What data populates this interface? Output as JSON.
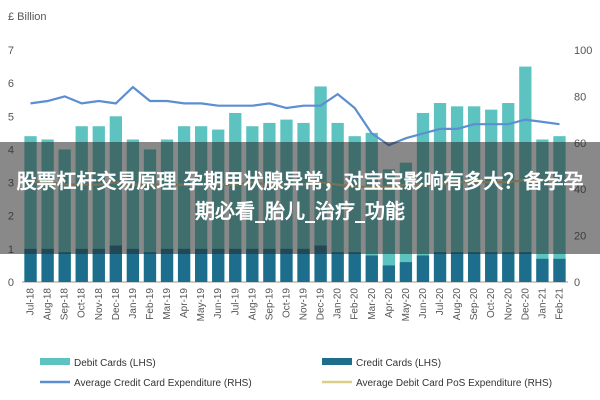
{
  "chart_data": {
    "type": "bar",
    "left_axis_label": "£ Billion",
    "y_left": {
      "range": [
        0,
        7
      ],
      "ticks": [
        "0",
        "1",
        "2",
        "3",
        "4",
        "5",
        "6",
        "7"
      ]
    },
    "y_right": {
      "range": [
        0,
        100
      ],
      "ticks": [
        "0",
        "20",
        "40",
        "60",
        "80",
        "100"
      ]
    },
    "categories": [
      "Jul-18",
      "Aug-18",
      "Sep-18",
      "Oct-18",
      "Nov-18",
      "Dec-18",
      "Jan-19",
      "Feb-19",
      "Mar-19",
      "Apr-19",
      "May-19",
      "Jun-19",
      "Jul-19",
      "Aug-19",
      "Sep-19",
      "Oct-19",
      "Nov-19",
      "Dec-19",
      "Jan-20",
      "Feb-20",
      "Mar-20",
      "Apr-20",
      "May-20",
      "Jun-20",
      "Jul-20",
      "Aug-20",
      "Sep-20",
      "Oct-20",
      "Nov-20",
      "Dec-20",
      "Jan-21",
      "Feb-21"
    ],
    "series": [
      {
        "name": "Debit Cards (LHS)",
        "type": "bar",
        "axis": "left",
        "color": "#5cc3c0",
        "values": [
          4.4,
          4.3,
          4.0,
          4.7,
          4.7,
          5.0,
          4.3,
          4.0,
          4.3,
          4.7,
          4.7,
          4.6,
          5.1,
          4.7,
          4.8,
          4.9,
          4.8,
          5.9,
          4.8,
          4.4,
          4.5,
          3.4,
          3.6,
          5.1,
          5.4,
          5.3,
          5.3,
          5.2,
          5.4,
          6.5,
          4.3,
          4.4
        ]
      },
      {
        "name": "Credit Cards (LHS)",
        "type": "bar",
        "axis": "left",
        "color": "#1d6e8c",
        "values": [
          1.0,
          1.0,
          0.9,
          1.0,
          1.0,
          1.1,
          1.0,
          0.9,
          1.0,
          1.0,
          1.0,
          1.0,
          1.0,
          1.0,
          1.0,
          1.0,
          1.0,
          1.1,
          0.9,
          0.9,
          0.8,
          0.5,
          0.6,
          0.8,
          0.9,
          0.9,
          0.9,
          0.9,
          0.9,
          0.9,
          0.7,
          0.7
        ]
      },
      {
        "name": "Average Credit Card Expenditure (RHS)",
        "type": "line",
        "axis": "right",
        "color": "#5b8fd0",
        "values": [
          77,
          78,
          80,
          77,
          78,
          77,
          84,
          78,
          78,
          77,
          77,
          76,
          76,
          76,
          77,
          75,
          76,
          76,
          81,
          75,
          64,
          59,
          62,
          64,
          66,
          66,
          68,
          68,
          68,
          70,
          69,
          68
        ]
      },
      {
        "name": "Average Debit Card PoS Expenditure (RHS)",
        "type": "line",
        "axis": "right",
        "color": "#d9cf88",
        "values": [
          43,
          43,
          42,
          42,
          42,
          43,
          42,
          42,
          42,
          42,
          42,
          42,
          42,
          43,
          42,
          42,
          42,
          43,
          42,
          41,
          41,
          41,
          42,
          42,
          42,
          43,
          43,
          43,
          43,
          44,
          44,
          44
        ]
      }
    ],
    "legend_position": "bottom",
    "grid": false
  },
  "overlay": {
    "text": "股票杠杆交易原理 孕期甲状腺异常，对宝宝影响有多大？备孕孕期必看_胎儿_治疗_功能"
  }
}
